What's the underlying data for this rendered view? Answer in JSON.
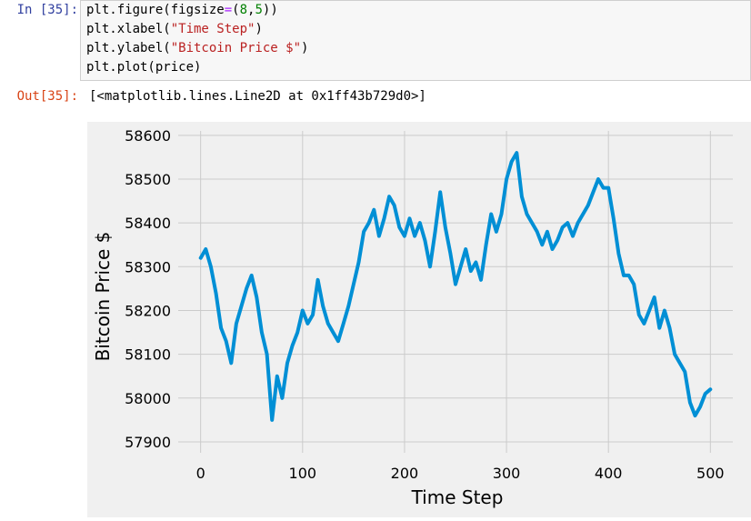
{
  "input_cell": {
    "prompt": "In [35]:",
    "code": {
      "line1": {
        "a": "plt.figure(figsize",
        "b": "=",
        "c": "(",
        "d": "8",
        "e": ",",
        "f": "5",
        "g": "))"
      },
      "line2": {
        "a": "plt.xlabel(",
        "b": "\"Time Step\"",
        "c": ")"
      },
      "line3": {
        "a": "plt.ylabel(",
        "b": "\"Bitcoin Price $\"",
        "c": ")"
      },
      "line4": {
        "a": "plt.plot(price)"
      }
    }
  },
  "output_cell": {
    "prompt": "Out[35]:",
    "text": "[<matplotlib.lines.Line2D at 0x1ff43b729d0>]"
  },
  "chart_data": {
    "type": "line",
    "style": "fivethirtyeight",
    "xlabel": "Time Step",
    "ylabel": "Bitcoin Price $",
    "xlim": [
      -22,
      522
    ],
    "ylim": [
      57875,
      58610
    ],
    "xticks": [
      0,
      100,
      200,
      300,
      400,
      500
    ],
    "yticks": [
      57900,
      58000,
      58100,
      58200,
      58300,
      58400,
      58500,
      58600
    ],
    "grid": true,
    "series": [
      {
        "color": "#008fd5",
        "x": [
          0,
          5,
          10,
          15,
          20,
          25,
          30,
          35,
          40,
          45,
          50,
          55,
          60,
          65,
          70,
          75,
          80,
          85,
          90,
          95,
          100,
          105,
          110,
          115,
          120,
          125,
          130,
          135,
          140,
          145,
          150,
          155,
          160,
          165,
          170,
          175,
          180,
          185,
          190,
          195,
          200,
          205,
          210,
          215,
          220,
          225,
          230,
          235,
          240,
          245,
          250,
          255,
          260,
          265,
          270,
          275,
          280,
          285,
          290,
          295,
          300,
          305,
          310,
          315,
          320,
          325,
          330,
          335,
          340,
          345,
          350,
          355,
          360,
          365,
          370,
          375,
          380,
          385,
          390,
          395,
          400,
          405,
          410,
          415,
          420,
          425,
          430,
          435,
          440,
          445,
          450,
          455,
          460,
          465,
          470,
          475,
          480,
          485,
          490,
          495,
          500
        ],
        "y": [
          58320,
          58340,
          58300,
          58240,
          58160,
          58130,
          58080,
          58170,
          58210,
          58250,
          58280,
          58230,
          58150,
          58100,
          57950,
          58050,
          58000,
          58080,
          58120,
          58150,
          58200,
          58170,
          58190,
          58270,
          58210,
          58170,
          58150,
          58130,
          58170,
          58210,
          58260,
          58310,
          58380,
          58400,
          58430,
          58370,
          58410,
          58460,
          58440,
          58390,
          58370,
          58410,
          58370,
          58400,
          58360,
          58300,
          58380,
          58470,
          58390,
          58330,
          58260,
          58300,
          58340,
          58290,
          58310,
          58270,
          58350,
          58420,
          58380,
          58420,
          58500,
          58540,
          58560,
          58460,
          58420,
          58400,
          58380,
          58350,
          58380,
          58340,
          58360,
          58390,
          58400,
          58370,
          58400,
          58420,
          58440,
          58470,
          58500,
          58480,
          58480,
          58410,
          58330,
          58280,
          58280,
          58260,
          58190,
          58170,
          58200,
          58230,
          58160,
          58200,
          58160,
          58100,
          58080,
          58060,
          57990,
          57960,
          57980,
          58010,
          58020
        ]
      }
    ]
  }
}
